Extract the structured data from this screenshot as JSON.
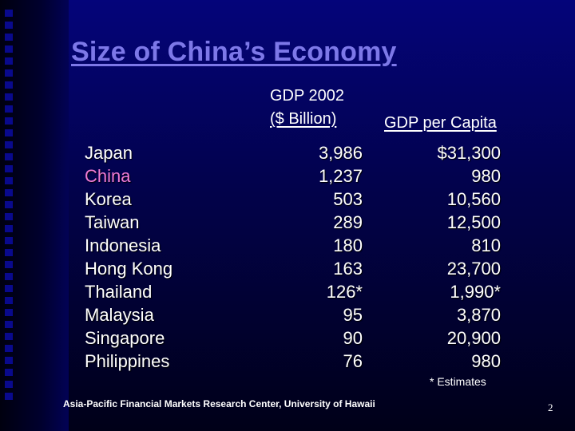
{
  "slide": {
    "title": "Size of China’s Economy",
    "headers": {
      "gdp_line1": "GDP 2002",
      "gdp_line2": "($ Billion)",
      "gdp_per_capita": "GDP per Capita"
    },
    "rows": [
      {
        "country": "Japan",
        "gdp": "3,986",
        "gdp_per_capita": "$31,300",
        "highlight": false
      },
      {
        "country": "China",
        "gdp": "1,237",
        "gdp_per_capita": "980",
        "highlight": true
      },
      {
        "country": "Korea",
        "gdp": "503",
        "gdp_per_capita": "10,560",
        "highlight": false
      },
      {
        "country": "Taiwan",
        "gdp": "289",
        "gdp_per_capita": "12,500",
        "highlight": false
      },
      {
        "country": "Indonesia",
        "gdp": "180",
        "gdp_per_capita": "810",
        "highlight": false
      },
      {
        "country": "Hong Kong",
        "gdp": "163",
        "gdp_per_capita": "23,700",
        "highlight": false
      },
      {
        "country": "Thailand",
        "gdp": "126*",
        "gdp_per_capita": "1,990*",
        "highlight": false
      },
      {
        "country": "Malaysia",
        "gdp": "95",
        "gdp_per_capita": "3,870",
        "highlight": false
      },
      {
        "country": "Singapore",
        "gdp": "90",
        "gdp_per_capita": "20,900",
        "highlight": false
      },
      {
        "country": "Philippines",
        "gdp": "76",
        "gdp_per_capita": "980",
        "highlight": false
      }
    ],
    "note": "* Estimates",
    "footer": "Asia-Pacific Financial Markets Research Center, University of Hawaii",
    "page_number": "2",
    "colors": {
      "title": "#7d78e8",
      "highlight": "#f07bd6",
      "text": "#ffffff",
      "background": "#02024a"
    }
  }
}
